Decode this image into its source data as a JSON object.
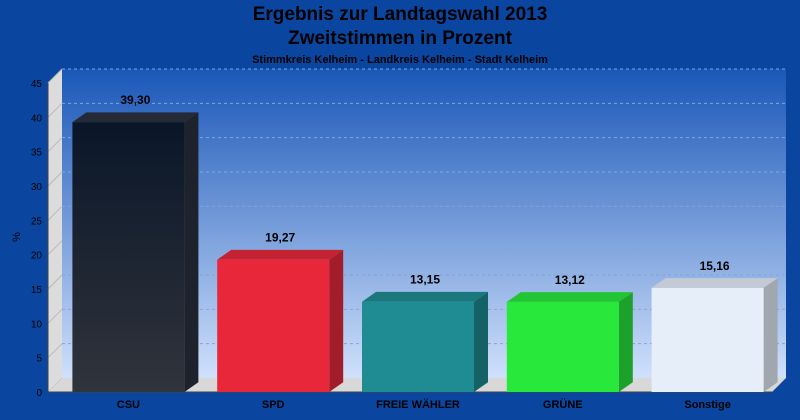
{
  "header": {
    "title_line1": "Ergebnis zur Landtagswahl 2013",
    "title_line2": "Zweitstimmen in Prozent",
    "subtitle": "Stimmkreis Kelheim - Landkreis Kelheim - Stadt Kelheim"
  },
  "chart_data": {
    "type": "bar",
    "title": "Ergebnis zur Landtagswahl 2013 Zweitstimmen in Prozent",
    "subtitle": "Stimmkreis Kelheim - Landkreis Kelheim - Stadt Kelheim",
    "xlabel": "",
    "ylabel": "%",
    "ylim": [
      0,
      45
    ],
    "yticks": [
      0,
      5,
      10,
      15,
      20,
      25,
      30,
      35,
      40,
      45
    ],
    "grid": true,
    "categories": [
      "CSU",
      "SPD",
      "FREIE WÄHLER",
      "GRÜNE",
      "Sonstige"
    ],
    "values": [
      39.3,
      19.27,
      13.15,
      13.12,
      15.16
    ],
    "value_labels": [
      "39,30",
      "19,27",
      "13,15",
      "13,12",
      "15,16"
    ],
    "colors": [
      "#1a1f2c",
      "#e8283a",
      "#1e8c92",
      "#28e83c",
      "#e6eefa"
    ],
    "background_color": "#0a46a0"
  }
}
